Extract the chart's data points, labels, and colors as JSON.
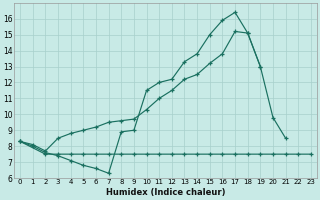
{
  "xlabel": "Humidex (Indice chaleur)",
  "background_color": "#c8eae6",
  "grid_color": "#a8d0cc",
  "line_color": "#1a7060",
  "xlim": [
    -0.5,
    23.5
  ],
  "ylim": [
    6,
    17
  ],
  "yticks": [
    6,
    7,
    8,
    9,
    10,
    11,
    12,
    13,
    14,
    15,
    16
  ],
  "xticks": [
    0,
    1,
    2,
    3,
    4,
    5,
    6,
    7,
    8,
    9,
    10,
    11,
    12,
    13,
    14,
    15,
    16,
    17,
    18,
    19,
    20,
    21,
    22,
    23
  ],
  "series1_x": [
    0,
    1,
    2,
    3,
    4,
    5,
    6,
    7,
    8,
    9,
    10,
    11,
    12,
    13,
    14,
    15,
    16,
    17,
    18,
    19,
    20,
    21,
    22
  ],
  "series1_y": [
    8.3,
    8.0,
    7.6,
    7.4,
    7.1,
    6.8,
    6.6,
    6.3,
    8.9,
    9.0,
    11.5,
    12.0,
    12.2,
    13.3,
    13.8,
    15.0,
    15.9,
    16.4,
    15.1,
    13.0,
    9.8,
    8.5,
    null
  ],
  "series2_x": [
    0,
    1,
    2,
    3,
    4,
    5,
    6,
    7,
    8,
    9,
    10,
    11,
    12,
    13,
    14,
    15,
    16,
    17,
    18,
    19,
    20
  ],
  "series2_y": [
    8.3,
    8.1,
    7.7,
    8.5,
    8.8,
    9.0,
    9.2,
    9.5,
    9.6,
    9.7,
    10.3,
    11.0,
    11.5,
    12.2,
    12.5,
    13.2,
    13.8,
    15.2,
    15.1,
    13.0,
    null
  ],
  "series3_x": [
    0,
    2,
    3,
    4,
    5,
    6,
    7,
    8,
    9,
    10,
    11,
    12,
    13,
    14,
    15,
    16,
    17,
    18,
    19,
    20,
    21,
    22,
    23
  ],
  "series3_y": [
    8.3,
    7.5,
    7.5,
    7.5,
    7.5,
    7.5,
    7.5,
    7.5,
    7.5,
    7.5,
    7.5,
    7.5,
    7.5,
    7.5,
    7.5,
    7.5,
    7.5,
    7.5,
    7.5,
    7.5,
    7.5,
    7.5,
    7.5
  ]
}
